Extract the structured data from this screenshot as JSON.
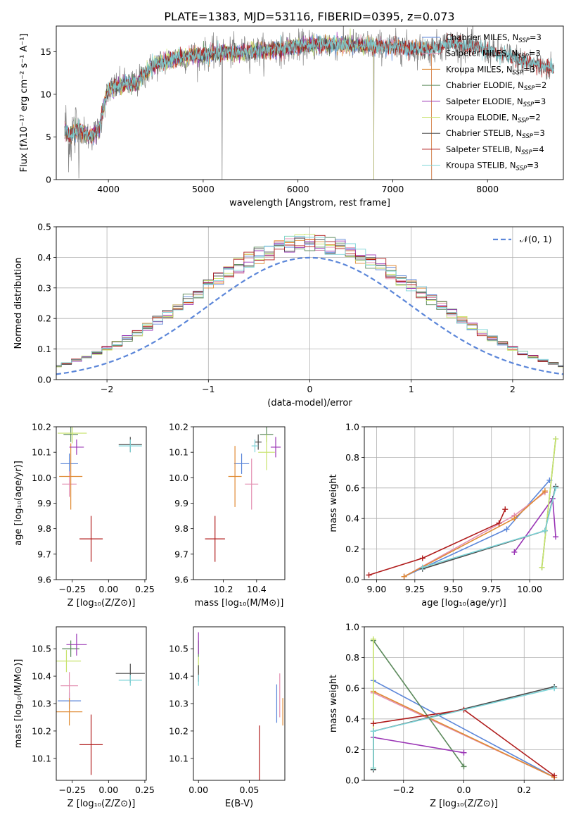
{
  "figure": {
    "title": "PLATE=1383, MJD=53116, FIBERID=0395, z=0.073"
  },
  "colors": {
    "Chabrier MILES": "#5b86d9",
    "Salpeter MILES": "#e38fb1",
    "Kroupa MILES": "#e08a33",
    "Chabrier ELODIE": "#5c8a5c",
    "Salpeter ELODIE": "#9a35b5",
    "Kroupa ELODIE": "#c7e36b",
    "Chabrier STELIB": "#4a4a4a",
    "Salpeter STELIB": "#b01c1c",
    "Kroupa STELIB": "#7dd4d8",
    "data": "#808080",
    "gaussian": "#5b86d9"
  },
  "legend_spectrum": [
    {
      "model": "Chabrier MILES",
      "label_main": "Chabrier MILES, N",
      "label_sub": "SSP",
      "label_tail": "=3"
    },
    {
      "model": "Salpeter MILES",
      "label_main": "Salpeter MILES, N",
      "label_sub": "SSP",
      "label_tail": "=3"
    },
    {
      "model": "Kroupa MILES",
      "label_main": "Kroupa MILES, N",
      "label_sub": "SSP",
      "label_tail": "=3"
    },
    {
      "model": "Chabrier ELODIE",
      "label_main": "Chabrier ELODIE, N",
      "label_sub": "SSP",
      "label_tail": "=2"
    },
    {
      "model": "Salpeter ELODIE",
      "label_main": "Salpeter ELODIE, N",
      "label_sub": "SSP",
      "label_tail": "=3"
    },
    {
      "model": "Kroupa ELODIE",
      "label_main": "Kroupa ELODIE, N",
      "label_sub": "SSP",
      "label_tail": "=2"
    },
    {
      "model": "Chabrier STELIB",
      "label_main": "Chabrier STELIB, N",
      "label_sub": "SSP",
      "label_tail": "=3"
    },
    {
      "model": "Salpeter STELIB",
      "label_main": "Salpeter STELIB, N",
      "label_sub": "SSP",
      "label_tail": "=4"
    },
    {
      "model": "Kroupa STELIB",
      "label_main": "Kroupa STELIB, N",
      "label_sub": "SSP",
      "label_tail": "=3"
    }
  ],
  "chart_data": [
    {
      "id": "spectrum",
      "type": "line",
      "xlabel": "wavelength [Angstrom, rest frame]",
      "ylabel": "Flux [fλ10⁻¹⁷ erg cm⁻² s⁻¹ A⁻¹]",
      "xlim": [
        3450,
        8800
      ],
      "ylim": [
        0,
        18
      ],
      "xticks": [
        4000,
        5000,
        6000,
        7000,
        8000
      ],
      "yticks": [
        0,
        5,
        10,
        15
      ],
      "grid": false,
      "legend_position": "right",
      "continuum": {
        "x": [
          3540,
          3600,
          3700,
          3800,
          3900,
          3960,
          4000,
          4100,
          4200,
          4300,
          4400,
          4500,
          4700,
          4900,
          5100,
          5300,
          5500,
          5800,
          6000,
          6200,
          6500,
          6800,
          7000,
          7200,
          7400,
          7600,
          7800,
          8000,
          8200,
          8400,
          8700
        ],
        "y": [
          5.8,
          5.2,
          6.0,
          5.0,
          5.8,
          9.0,
          10.5,
          11.0,
          11.3,
          11.2,
          12.6,
          13.5,
          14.2,
          14.5,
          14.8,
          14.9,
          15.0,
          15.3,
          15.6,
          15.9,
          15.8,
          15.7,
          15.6,
          15.4,
          15.3,
          16.0,
          15.7,
          15.2,
          14.5,
          13.8,
          13.0
        ]
      },
      "series": [
        {
          "name": "Chabrier MILES",
          "x_range": [
            3540,
            7410
          ]
        },
        {
          "name": "Salpeter MILES",
          "x_range": [
            3540,
            7410
          ]
        },
        {
          "name": "Kroupa MILES",
          "x_range": [
            3540,
            7410
          ]
        },
        {
          "name": "Chabrier ELODIE",
          "x_range": [
            3540,
            6800
          ]
        },
        {
          "name": "Salpeter ELODIE",
          "x_range": [
            3540,
            6800
          ]
        },
        {
          "name": "Kroupa ELODIE",
          "x_range": [
            3540,
            6800
          ]
        },
        {
          "name": "Chabrier STELIB",
          "x_range": [
            3540,
            8700
          ]
        },
        {
          "name": "Salpeter STELIB",
          "x_range": [
            3540,
            8700
          ]
        },
        {
          "name": "Kroupa STELIB",
          "x_range": [
            3540,
            8700
          ]
        }
      ]
    },
    {
      "id": "residuals",
      "type": "line",
      "xlabel": "(data-model)/error",
      "ylabel": "Normed distribution",
      "xlim": [
        -2.5,
        2.5
      ],
      "ylim": [
        0,
        0.5
      ],
      "xticks": [
        -2,
        -1,
        0,
        1,
        2
      ],
      "yticks": [
        0.0,
        0.1,
        0.2,
        0.3,
        0.4,
        0.5
      ],
      "grid": true,
      "legend_position": "top-right",
      "gaussian_label": "𝒩(0, 1)",
      "bin_width": 0.1
    },
    {
      "id": "age_vs_Z",
      "type": "scatter",
      "xlabel": "Z [log₁₀(Z/Z⊙)]",
      "ylabel": "age  [log₁₀(age/yr)]",
      "xlim": [
        -0.36,
        0.26
      ],
      "ylim": [
        9.6,
        10.2
      ],
      "xticks": [
        -0.25,
        0.0,
        0.25
      ],
      "yticks": [
        9.6,
        9.7,
        9.8,
        9.9,
        10.0,
        10.1,
        10.2
      ],
      "points": [
        {
          "model": "Chabrier MILES",
          "x": -0.27,
          "y": 10.055,
          "xerr": 0.06,
          "yerr": 0.04
        },
        {
          "model": "Salpeter MILES",
          "x": -0.27,
          "y": 9.975,
          "xerr": 0.05,
          "yerr": 0.05
        },
        {
          "model": "Kroupa MILES",
          "x": -0.26,
          "y": 10.005,
          "xerr": 0.08,
          "yerr": 0.13
        },
        {
          "model": "Chabrier ELODIE",
          "x": -0.26,
          "y": 10.17,
          "xerr": 0.05,
          "yerr": 0.03
        },
        {
          "model": "Salpeter ELODIE",
          "x": -0.22,
          "y": 10.12,
          "xerr": 0.05,
          "yerr": 0.03
        },
        {
          "model": "Kroupa ELODIE",
          "x": -0.25,
          "y": 10.175,
          "xerr": 0.1,
          "yerr": 0.04
        },
        {
          "model": "Chabrier STELIB",
          "x": 0.15,
          "y": 10.13,
          "xerr": 0.08,
          "yerr": 0.03
        },
        {
          "model": "Salpeter STELIB",
          "x": -0.12,
          "y": 9.76,
          "xerr": 0.08,
          "yerr": 0.09
        },
        {
          "model": "Kroupa STELIB",
          "x": 0.15,
          "y": 10.125,
          "xerr": 0.08,
          "yerr": 0.025
        }
      ]
    },
    {
      "id": "age_vs_mass",
      "type": "scatter",
      "xlabel": "mass [log₁₀(M/M⊙)]",
      "ylabel": "",
      "xlim": [
        10.02,
        10.57
      ],
      "ylim": [
        9.6,
        10.2
      ],
      "xticks": [
        10.2,
        10.4
      ],
      "yticks": [
        9.6,
        9.7,
        9.8,
        9.9,
        10.0,
        10.1,
        10.2
      ],
      "points": [
        {
          "model": "Chabrier MILES",
          "x": 10.31,
          "y": 10.055,
          "xerr": 0.045,
          "yerr": 0.04
        },
        {
          "model": "Salpeter MILES",
          "x": 10.37,
          "y": 9.975,
          "xerr": 0.04,
          "yerr": 0.1
        },
        {
          "model": "Kroupa MILES",
          "x": 10.27,
          "y": 10.005,
          "xerr": 0.04,
          "yerr": 0.12
        },
        {
          "model": "Chabrier ELODIE",
          "x": 10.46,
          "y": 10.17,
          "xerr": 0.04,
          "yerr": 0.03
        },
        {
          "model": "Salpeter ELODIE",
          "x": 10.515,
          "y": 10.12,
          "xerr": 0.03,
          "yerr": 0.04
        },
        {
          "model": "Kroupa ELODIE",
          "x": 10.46,
          "y": 10.1,
          "xerr": 0.05,
          "yerr": 0.07
        },
        {
          "model": "Chabrier STELIB",
          "x": 10.41,
          "y": 10.14,
          "xerr": 0.02,
          "yerr": 0.03
        },
        {
          "model": "Salpeter STELIB",
          "x": 10.15,
          "y": 9.76,
          "xerr": 0.06,
          "yerr": 0.09
        },
        {
          "model": "Kroupa STELIB",
          "x": 10.39,
          "y": 10.125,
          "xerr": 0.02,
          "yerr": 0.025
        }
      ]
    },
    {
      "id": "weight_vs_age",
      "type": "line",
      "xlabel": "age  [log₁₀(age/yr)]",
      "ylabel": "mass weight",
      "xlim": [
        8.92,
        10.22
      ],
      "ylim": [
        0,
        1
      ],
      "xticks": [
        9.0,
        9.25,
        9.5,
        9.75,
        10.0
      ],
      "yticks": [
        0.0,
        0.2,
        0.4,
        0.6,
        0.8,
        1.0
      ],
      "grid": true,
      "series": [
        {
          "model": "Chabrier MILES",
          "x": [
            9.18,
            9.85,
            10.13
          ],
          "y": [
            0.02,
            0.33,
            0.65
          ]
        },
        {
          "model": "Salpeter MILES",
          "x": [
            9.18,
            9.9,
            10.1
          ],
          "y": [
            0.02,
            0.42,
            0.57
          ]
        },
        {
          "model": "Kroupa MILES",
          "x": [
            9.18,
            9.9,
            10.1
          ],
          "y": [
            0.02,
            0.4,
            0.58
          ]
        },
        {
          "model": "Chabrier ELODIE",
          "x": [
            10.08,
            10.17
          ],
          "y": [
            0.08,
            0.92
          ]
        },
        {
          "model": "Salpeter ELODIE",
          "x": [
            9.9,
            10.15,
            10.17
          ],
          "y": [
            0.18,
            0.53,
            0.28
          ]
        },
        {
          "model": "Kroupa ELODIE",
          "x": [
            10.08,
            10.17
          ],
          "y": [
            0.08,
            0.92
          ]
        },
        {
          "model": "Chabrier STELIB",
          "x": [
            9.3,
            10.1,
            10.17
          ],
          "y": [
            0.07,
            0.32,
            0.61
          ]
        },
        {
          "model": "Salpeter STELIB",
          "x": [
            8.95,
            9.3,
            9.8,
            9.84
          ],
          "y": [
            0.03,
            0.14,
            0.37,
            0.46
          ]
        },
        {
          "model": "Kroupa STELIB",
          "x": [
            9.3,
            10.1,
            10.17
          ],
          "y": [
            0.08,
            0.32,
            0.6
          ]
        }
      ]
    },
    {
      "id": "mass_vs_Z",
      "type": "scatter",
      "xlabel": "Z [log₁₀(Z/Z⊙)]",
      "ylabel": "mass [log₁₀(M/M⊙)]",
      "xlim": [
        -0.36,
        0.26
      ],
      "ylim": [
        10.02,
        10.58
      ],
      "xticks": [
        -0.25,
        0.0,
        0.25
      ],
      "yticks": [
        10.1,
        10.2,
        10.3,
        10.4,
        10.5
      ],
      "points": [
        {
          "model": "Chabrier MILES",
          "x": -0.27,
          "y": 10.31,
          "xerr": 0.08,
          "yerr": 0.03
        },
        {
          "model": "Salpeter MILES",
          "x": -0.27,
          "y": 10.365,
          "xerr": 0.06,
          "yerr": 0.05
        },
        {
          "model": "Kroupa MILES",
          "x": -0.27,
          "y": 10.27,
          "xerr": 0.09,
          "yerr": 0.05
        },
        {
          "model": "Chabrier ELODIE",
          "x": -0.26,
          "y": 10.5,
          "xerr": 0.06,
          "yerr": 0.03
        },
        {
          "model": "Salpeter ELODIE",
          "x": -0.22,
          "y": 10.515,
          "xerr": 0.07,
          "yerr": 0.04
        },
        {
          "model": "Kroupa ELODIE",
          "x": -0.29,
          "y": 10.455,
          "xerr": 0.1,
          "yerr": 0.04
        },
        {
          "model": "Chabrier STELIB",
          "x": 0.15,
          "y": 10.41,
          "xerr": 0.1,
          "yerr": 0.035
        },
        {
          "model": "Salpeter STELIB",
          "x": -0.12,
          "y": 10.15,
          "xerr": 0.08,
          "yerr": 0.11
        },
        {
          "model": "Kroupa STELIB",
          "x": 0.15,
          "y": 10.385,
          "xerr": 0.08,
          "yerr": 0.02
        }
      ]
    },
    {
      "id": "mass_vs_ebv",
      "type": "scatter",
      "xlabel": "E(B-V)",
      "ylabel": "",
      "xlim": [
        -0.005,
        0.085
      ],
      "ylim": [
        10.02,
        10.58
      ],
      "xticks": [
        0.0,
        0.05
      ],
      "yticks": [
        10.1,
        10.2,
        10.3,
        10.4,
        10.5
      ],
      "points": [
        {
          "model": "Chabrier MILES",
          "x": 0.077,
          "y": 10.3,
          "xerr": 0,
          "yerr": 0.07
        },
        {
          "model": "Salpeter MILES",
          "x": 0.08,
          "y": 10.33,
          "xerr": 0,
          "yerr": 0.08
        },
        {
          "model": "Kroupa MILES",
          "x": 0.083,
          "y": 10.27,
          "xerr": 0,
          "yerr": 0.05
        },
        {
          "model": "Chabrier ELODIE",
          "x": 0.0,
          "y": 10.5,
          "xerr": 0,
          "yerr": 0.03
        },
        {
          "model": "Salpeter ELODIE",
          "x": 0.0,
          "y": 10.52,
          "xerr": 0,
          "yerr": 0.04
        },
        {
          "model": "Kroupa ELODIE",
          "x": 0.0,
          "y": 10.44,
          "xerr": 0,
          "yerr": 0.03
        },
        {
          "model": "Chabrier STELIB",
          "x": 0.0,
          "y": 10.41,
          "xerr": 0,
          "yerr": 0.03
        },
        {
          "model": "Salpeter STELIB",
          "x": 0.06,
          "y": 10.12,
          "xerr": 0,
          "yerr": 0.1
        },
        {
          "model": "Kroupa STELIB",
          "x": 0.0,
          "y": 10.385,
          "xerr": 0,
          "yerr": 0.02
        }
      ]
    },
    {
      "id": "weight_vs_Z",
      "type": "line",
      "xlabel": "Z [log₁₀(Z/Z⊙)]",
      "ylabel": "mass weight",
      "xlim": [
        -0.33,
        0.33
      ],
      "ylim": [
        0,
        1
      ],
      "xticks": [
        -0.2,
        0.0,
        0.2
      ],
      "yticks": [
        0.0,
        0.2,
        0.4,
        0.6,
        0.8,
        1.0
      ],
      "grid": true,
      "series": [
        {
          "model": "Chabrier MILES",
          "x": [
            -0.3,
            0.3
          ],
          "y": [
            0.65,
            0.02
          ]
        },
        {
          "model": "Salpeter MILES",
          "x": [
            -0.3,
            0.3
          ],
          "y": [
            0.57,
            0.02
          ]
        },
        {
          "model": "Kroupa MILES",
          "x": [
            -0.3,
            0.3
          ],
          "y": [
            0.58,
            0.02
          ]
        },
        {
          "model": "Chabrier ELODIE",
          "x": [
            -0.3,
            0.0
          ],
          "y": [
            0.91,
            0.09
          ]
        },
        {
          "model": "Salpeter ELODIE",
          "x": [
            -0.3,
            0.0
          ],
          "y": [
            0.28,
            0.18
          ]
        },
        {
          "model": "Kroupa ELODIE",
          "x": [
            -0.3,
            -0.3
          ],
          "y": [
            0.08,
            0.92
          ]
        },
        {
          "model": "Chabrier STELIB",
          "x": [
            -0.3,
            -0.3,
            0.3
          ],
          "y": [
            0.07,
            0.32,
            0.61
          ]
        },
        {
          "model": "Salpeter STELIB",
          "x": [
            -0.3,
            0.0,
            0.3
          ],
          "y": [
            0.37,
            0.46,
            0.03
          ]
        },
        {
          "model": "Kroupa STELIB",
          "x": [
            -0.3,
            -0.3,
            0.3
          ],
          "y": [
            0.08,
            0.32,
            0.6
          ]
        }
      ]
    }
  ]
}
